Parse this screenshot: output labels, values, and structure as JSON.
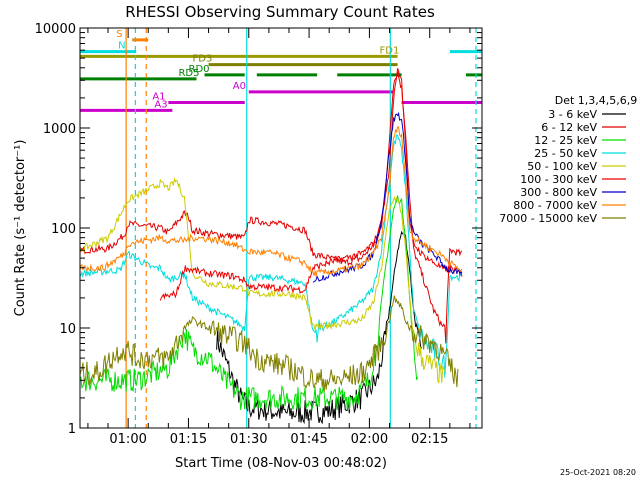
{
  "chart_data": {
    "type": "line",
    "title": "RHESSI Observing Summary Count Rates",
    "xlabel": "Start Time (08-Nov-03 00:48:02)",
    "ylabel": "Count Rate (s⁻¹ detector⁻¹)",
    "yscale": "log",
    "ylim": [
      1,
      10000
    ],
    "xlim_minutes_after_midnight": [
      48.03,
      148
    ],
    "x_ticks": [
      {
        "minute": 60,
        "label": "01:00"
      },
      {
        "minute": 75,
        "label": "01:15"
      },
      {
        "minute": 90,
        "label": "01:30"
      },
      {
        "minute": 105,
        "label": "01:45"
      },
      {
        "minute": 120,
        "label": "02:00"
      },
      {
        "minute": 135,
        "label": "02:15"
      }
    ],
    "y_ticks": [
      {
        "value": 1,
        "label": "1"
      },
      {
        "value": 10,
        "label": "10"
      },
      {
        "value": 100,
        "label": "100"
      },
      {
        "value": 1000,
        "label": "1000"
      },
      {
        "value": 10000,
        "label": "10000"
      }
    ],
    "legend_title": "Det 1,3,4,5,6,9",
    "legend_position": "right",
    "series": [
      {
        "name": "3 - 6 keV",
        "color": "#000000",
        "points": [
          [
            82,
            8
          ],
          [
            84,
            5
          ],
          [
            86,
            3
          ],
          [
            88,
            2
          ],
          [
            90,
            1.6
          ],
          [
            100,
            1.4
          ],
          [
            110,
            1.5
          ],
          [
            118,
            2
          ],
          [
            122,
            3
          ],
          [
            124,
            8
          ],
          [
            126,
            30
          ],
          [
            127,
            60
          ],
          [
            128,
            90
          ],
          [
            129,
            80
          ],
          [
            130,
            40
          ],
          [
            131,
            15
          ],
          [
            132,
            8
          ],
          [
            133,
            5
          ]
        ]
      },
      {
        "name": "6 - 12 keV",
        "color": "#e00000",
        "points": [
          [
            48,
            60
          ],
          [
            55,
            62
          ],
          [
            59,
            85
          ],
          [
            60,
            110
          ],
          [
            68,
            100
          ],
          [
            70,
            90
          ],
          [
            74,
            140
          ],
          [
            75,
            130
          ],
          [
            76,
            95
          ],
          [
            80,
            88
          ],
          [
            89,
            80
          ],
          [
            90,
            120
          ],
          [
            94,
            115
          ],
          [
            100,
            105
          ],
          [
            104,
            95
          ],
          [
            106,
            55
          ],
          [
            110,
            50
          ],
          [
            114,
            45
          ],
          [
            118,
            50
          ],
          [
            122,
            75
          ],
          [
            124,
            220
          ],
          [
            125,
            800
          ],
          [
            126,
            2800
          ],
          [
            127,
            3600
          ],
          [
            128,
            2500
          ],
          [
            129,
            900
          ],
          [
            130,
            200
          ],
          [
            131,
            60
          ],
          [
            133,
            35
          ],
          [
            136,
            15
          ],
          [
            139,
            9
          ],
          [
            140,
            60
          ],
          [
            143,
            55
          ]
        ]
      },
      {
        "name": "12 - 25 keV",
        "color": "#00dd00",
        "points": [
          [
            48,
            3
          ],
          [
            60,
            3
          ],
          [
            62,
            3
          ],
          [
            70,
            4
          ],
          [
            74,
            9
          ],
          [
            76,
            6
          ],
          [
            80,
            5
          ],
          [
            84,
            3
          ],
          [
            88,
            2
          ],
          [
            92,
            2
          ],
          [
            106,
            2
          ],
          [
            116,
            2
          ],
          [
            120,
            3
          ],
          [
            122,
            8
          ],
          [
            124,
            40
          ],
          [
            126,
            150
          ],
          [
            127,
            200
          ],
          [
            128,
            180
          ],
          [
            129,
            80
          ],
          [
            130,
            20
          ],
          [
            131,
            6
          ],
          [
            132,
            3
          ]
        ]
      },
      {
        "name": "25 - 50 keV",
        "color": "#00dddd",
        "points": [
          [
            48,
            35
          ],
          [
            58,
            38
          ],
          [
            60,
            55
          ],
          [
            66,
            40
          ],
          [
            68,
            40
          ],
          [
            70,
            30
          ],
          [
            74,
            35
          ],
          [
            76,
            20
          ],
          [
            80,
            16
          ],
          [
            86,
            12
          ],
          [
            89,
            10
          ],
          [
            90,
            32
          ],
          [
            96,
            32
          ],
          [
            104,
            28
          ],
          [
            106,
            9
          ],
          [
            112,
            12
          ],
          [
            118,
            18
          ],
          [
            121,
            25
          ],
          [
            123,
            60
          ],
          [
            125,
            300
          ],
          [
            126,
            650
          ],
          [
            127,
            850
          ],
          [
            128,
            600
          ],
          [
            129,
            250
          ],
          [
            130,
            60
          ],
          [
            131,
            15
          ],
          [
            133,
            8
          ],
          [
            136,
            6
          ],
          [
            139,
            4
          ],
          [
            140,
            33
          ],
          [
            143,
            32
          ]
        ]
      },
      {
        "name": "50 - 100 keV",
        "color": "#cccc00",
        "points": [
          [
            48,
            60
          ],
          [
            55,
            80
          ],
          [
            59,
            160
          ],
          [
            60,
            190
          ],
          [
            68,
            280
          ],
          [
            70,
            250
          ],
          [
            72,
            300
          ],
          [
            74,
            200
          ],
          [
            76,
            35
          ],
          [
            80,
            28
          ],
          [
            86,
            26
          ],
          [
            89,
            25
          ],
          [
            90,
            22
          ],
          [
            100,
            22
          ],
          [
            104,
            20
          ],
          [
            106,
            10
          ],
          [
            112,
            11
          ],
          [
            118,
            12
          ],
          [
            121,
            18
          ],
          [
            123,
            40
          ],
          [
            125,
            150
          ],
          [
            126,
            200
          ],
          [
            127,
            190
          ],
          [
            128,
            140
          ],
          [
            129,
            60
          ],
          [
            130,
            20
          ],
          [
            131,
            8
          ],
          [
            133,
            5
          ],
          [
            136,
            4
          ],
          [
            139,
            3
          ]
        ]
      },
      {
        "name": "100 - 300 keV",
        "color": "#ee0000",
        "points": [
          [
            68,
            20
          ],
          [
            72,
            22
          ],
          [
            74,
            40
          ],
          [
            76,
            38
          ],
          [
            80,
            35
          ],
          [
            86,
            33
          ],
          [
            89,
            30
          ],
          [
            90,
            26
          ],
          [
            100,
            25
          ],
          [
            104,
            24
          ],
          [
            106,
            40
          ],
          [
            112,
            48
          ],
          [
            118,
            55
          ],
          [
            121,
            70
          ],
          [
            123,
            110
          ],
          [
            125,
            400
          ],
          [
            126,
            1900
          ],
          [
            127,
            4000
          ],
          [
            128,
            3000
          ],
          [
            129,
            700
          ],
          [
            130,
            110
          ],
          [
            131,
            70
          ],
          [
            133,
            55
          ],
          [
            136,
            45
          ],
          [
            139,
            38
          ],
          [
            140,
            40
          ],
          [
            143,
            35
          ]
        ]
      },
      {
        "name": "300 - 800 keV",
        "color": "#0000cc",
        "points": [
          [
            106,
            30
          ],
          [
            112,
            36
          ],
          [
            118,
            42
          ],
          [
            121,
            55
          ],
          [
            123,
            120
          ],
          [
            125,
            600
          ],
          [
            126,
            1200
          ],
          [
            127,
            1400
          ],
          [
            128,
            1200
          ],
          [
            129,
            500
          ],
          [
            130,
            130
          ],
          [
            131,
            90
          ],
          [
            133,
            70
          ],
          [
            136,
            55
          ],
          [
            139,
            40
          ],
          [
            140,
            38
          ],
          [
            143,
            34
          ]
        ]
      },
      {
        "name": "800 - 7000 keV",
        "color": "#ff8000",
        "points": [
          [
            48,
            40
          ],
          [
            54,
            40
          ],
          [
            59,
            55
          ],
          [
            60,
            70
          ],
          [
            68,
            80
          ],
          [
            70,
            75
          ],
          [
            74,
            75
          ],
          [
            76,
            80
          ],
          [
            80,
            78
          ],
          [
            86,
            70
          ],
          [
            89,
            60
          ],
          [
            90,
            58
          ],
          [
            96,
            56
          ],
          [
            100,
            50
          ],
          [
            104,
            45
          ],
          [
            106,
            35
          ],
          [
            112,
            37
          ],
          [
            118,
            42
          ],
          [
            121,
            55
          ],
          [
            123,
            80
          ],
          [
            125,
            250
          ],
          [
            126,
            800
          ],
          [
            127,
            1000
          ],
          [
            128,
            850
          ],
          [
            129,
            300
          ],
          [
            130,
            100
          ],
          [
            131,
            80
          ],
          [
            133,
            70
          ],
          [
            136,
            60
          ],
          [
            139,
            50
          ],
          [
            140,
            45
          ],
          [
            143,
            37
          ]
        ]
      },
      {
        "name": "7000 - 15000 keV",
        "color": "#808000",
        "points": [
          [
            48,
            3.5
          ],
          [
            52,
            3.5
          ],
          [
            56,
            5
          ],
          [
            58,
            6
          ],
          [
            60,
            6
          ],
          [
            62,
            5
          ],
          [
            70,
            5
          ],
          [
            74,
            10
          ],
          [
            76,
            12
          ],
          [
            80,
            10
          ],
          [
            86,
            8
          ],
          [
            89,
            7
          ],
          [
            92,
            5
          ],
          [
            100,
            4
          ],
          [
            106,
            3
          ],
          [
            112,
            3
          ],
          [
            118,
            3.5
          ],
          [
            121,
            5
          ],
          [
            123,
            7
          ],
          [
            125,
            12
          ],
          [
            126,
            20
          ],
          [
            127,
            18
          ],
          [
            128,
            16
          ],
          [
            129,
            12
          ],
          [
            130,
            10
          ],
          [
            131,
            9
          ],
          [
            133,
            8
          ],
          [
            136,
            7
          ],
          [
            139,
            5
          ],
          [
            142,
            3
          ]
        ]
      }
    ],
    "annotations": {
      "bars": [
        {
          "label": "S",
          "color": "#ff8000",
          "level": 7600,
          "segments": [
            [
              61,
              65
            ]
          ]
        },
        {
          "label": "N",
          "color": "#00dddd",
          "level": 5800,
          "segments": [
            [
              48,
              62
            ],
            [
              140,
              148
            ]
          ]
        },
        {
          "label": "FD1",
          "color": "#999900",
          "level": 5200,
          "segments": [
            [
              48,
              127
            ]
          ]
        },
        {
          "label": "FD3",
          "color": "#808000",
          "level": 4300,
          "segments": [
            [
              80,
              127
            ]
          ]
        },
        {
          "label": "RD0",
          "color": "#008000",
          "level": 3400,
          "segments": [
            [
              79,
              89
            ],
            [
              92,
              107
            ],
            [
              112,
              128
            ],
            [
              144,
              148
            ]
          ]
        },
        {
          "label": "RD5",
          "color": "#008000",
          "level": 3100,
          "segments": [
            [
              48,
              77
            ]
          ]
        },
        {
          "label": "A0",
          "color": "#cc00cc",
          "level": 2300,
          "segments": [
            [
              90,
              126
            ]
          ]
        },
        {
          "label": "A1",
          "color": "#cc00cc",
          "level": 1800,
          "segments": [
            [
              70,
              89
            ],
            [
              128,
              148
            ]
          ]
        },
        {
          "label": "A3",
          "color": "#cc00cc",
          "level": 1500,
          "segments": [
            [
              48,
              71
            ]
          ]
        }
      ],
      "vertical_lines": [
        {
          "minute": 59.5,
          "color": "#ff8000",
          "style": "solid"
        },
        {
          "minute": 64.5,
          "color": "#ff8000",
          "style": "dashed"
        },
        {
          "minute": 61.8,
          "color": "#00dddd",
          "style": "dashed"
        },
        {
          "minute": 89.5,
          "color": "#00dddd",
          "style": "solid"
        },
        {
          "minute": 125.2,
          "color": "#00dddd",
          "style": "solid"
        },
        {
          "minute": 146.5,
          "color": "#00dddd",
          "style": "dashed"
        }
      ]
    },
    "footer": "25-Oct-2021 08:20"
  }
}
